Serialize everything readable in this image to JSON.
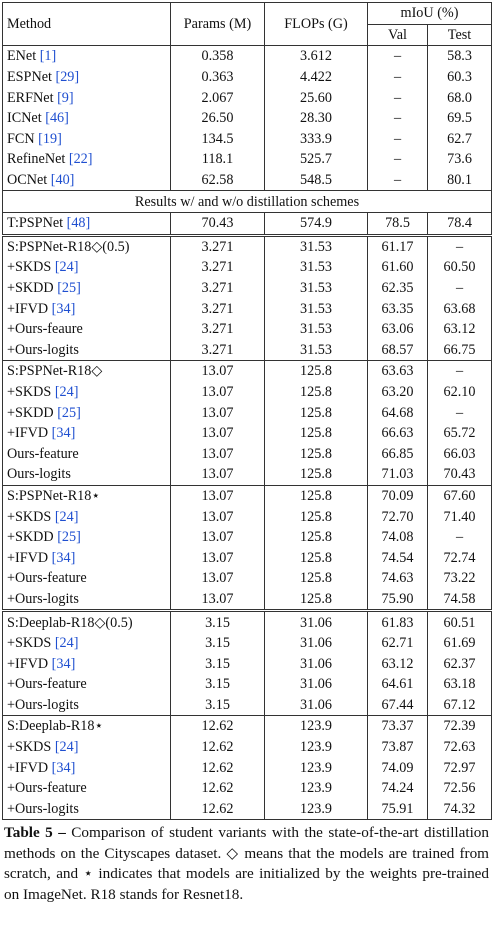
{
  "header": {
    "method": "Method",
    "params": "Params (M)",
    "flops": "FLOPs (G)",
    "miou": "mIoU (%)",
    "val": "Val",
    "test": "Test"
  },
  "groups": [
    {
      "rows": [
        {
          "method": "ENet",
          "ref": "[1]",
          "params": "0.358",
          "flops": "3.612",
          "val": "–",
          "test": "58.3"
        },
        {
          "method": "ESPNet",
          "ref": "[29]",
          "params": "0.363",
          "flops": "4.422",
          "val": "–",
          "test": "60.3"
        },
        {
          "method": "ERFNet",
          "ref": "[9]",
          "params": "2.067",
          "flops": "25.60",
          "val": "–",
          "test": "68.0"
        },
        {
          "method": "ICNet",
          "ref": "[46]",
          "params": "26.50",
          "flops": "28.30",
          "val": "–",
          "test": "69.5"
        },
        {
          "method": "FCN",
          "ref": "[19]",
          "params": "134.5",
          "flops": "333.9",
          "val": "–",
          "test": "62.7"
        },
        {
          "method": "RefineNet",
          "ref": "[22]",
          "params": "118.1",
          "flops": "525.7",
          "val": "–",
          "test": "73.6"
        },
        {
          "method": "OCNet",
          "ref": "[40]",
          "params": "62.58",
          "flops": "548.5",
          "val": "–",
          "test": "80.1"
        }
      ]
    },
    {
      "rows": [
        {
          "method": "T:PSPNet",
          "ref": "[48]",
          "params": "70.43",
          "flops": "574.9",
          "val": "78.5",
          "test": "78.4"
        }
      ]
    },
    {
      "rows": [
        {
          "method": "S:PSPNet-R18◇(0.5)",
          "params": "3.271",
          "flops": "31.53",
          "val": "61.17",
          "test": "–"
        },
        {
          "method": "+SKDS",
          "ref": "[24]",
          "params": "3.271",
          "flops": "31.53",
          "val": "61.60",
          "test": "60.50"
        },
        {
          "method": "+SKDD",
          "ref": "[25]",
          "params": "3.271",
          "flops": "31.53",
          "val": "62.35",
          "test": "–"
        },
        {
          "method": "+IFVD",
          "ref": "[34]",
          "params": "3.271",
          "flops": "31.53",
          "val": "63.35",
          "test": "63.68"
        },
        {
          "method": "+Ours-feaure",
          "params": "3.271",
          "flops": "31.53",
          "val": "63.06",
          "test": "63.12"
        },
        {
          "method": "+Ours-logits",
          "params": "3.271",
          "flops": "31.53",
          "val": "68.57",
          "test": "66.75"
        }
      ]
    },
    {
      "rows": [
        {
          "method": "S:PSPNet-R18◇",
          "params": "13.07",
          "flops": "125.8",
          "val": "63.63",
          "test": "–"
        },
        {
          "method": "+SKDS",
          "ref": "[24]",
          "params": "13.07",
          "flops": "125.8",
          "val": "63.20",
          "test": "62.10"
        },
        {
          "method": "+SKDD",
          "ref": "[25]",
          "params": "13.07",
          "flops": "125.8",
          "val": "64.68",
          "test": "–"
        },
        {
          "method": "+IFVD",
          "ref": "[34]",
          "params": "13.07",
          "flops": "125.8",
          "val": "66.63",
          "test": "65.72"
        },
        {
          "method": "Ours-feature",
          "params": "13.07",
          "flops": "125.8",
          "val": "66.85",
          "test": "66.03"
        },
        {
          "method": "Ours-logits",
          "params": "13.07",
          "flops": "125.8",
          "val": "71.03",
          "test": "70.43"
        }
      ]
    },
    {
      "rows": [
        {
          "method": "S:PSPNet-R18⋆",
          "params": "13.07",
          "flops": "125.8",
          "val": "70.09",
          "test": "67.60"
        },
        {
          "method": "+SKDS",
          "ref": "[24]",
          "params": "13.07",
          "flops": "125.8",
          "val": "72.70",
          "test": "71.40"
        },
        {
          "method": "+SKDD",
          "ref": "[25]",
          "params": "13.07",
          "flops": "125.8",
          "val": "74.08",
          "test": "–"
        },
        {
          "method": "+IFVD",
          "ref": "[34]",
          "params": "13.07",
          "flops": "125.8",
          "val": "74.54",
          "test": "72.74"
        },
        {
          "method": "+Ours-feature",
          "params": "13.07",
          "flops": "125.8",
          "val": "74.63",
          "test": "73.22"
        },
        {
          "method": "+Ours-logits",
          "params": "13.07",
          "flops": "125.8",
          "val": "75.90",
          "test": "74.58"
        }
      ]
    },
    {
      "rows": [
        {
          "method": "S:Deeplab-R18◇(0.5)",
          "params": "3.15",
          "flops": "31.06",
          "val": "61.83",
          "test": "60.51"
        },
        {
          "method": "+SKDS",
          "ref": "[24]",
          "params": "3.15",
          "flops": "31.06",
          "val": "62.71",
          "test": "61.69"
        },
        {
          "method": "+IFVD",
          "ref": "[34]",
          "params": "3.15",
          "flops": "31.06",
          "val": "63.12",
          "test": "62.37"
        },
        {
          "method": "+Ours-feature",
          "params": "3.15",
          "flops": "31.06",
          "val": "64.61",
          "test": "63.18"
        },
        {
          "method": "+Ours-logits",
          "params": "3.15",
          "flops": "31.06",
          "val": "67.44",
          "test": "67.12"
        }
      ]
    },
    {
      "rows": [
        {
          "method": "S:Deeplab-R18⋆",
          "params": "12.62",
          "flops": "123.9",
          "val": "73.37",
          "test": "72.39"
        },
        {
          "method": "+SKDS",
          "ref": "[24]",
          "params": "12.62",
          "flops": "123.9",
          "val": "73.87",
          "test": "72.63"
        },
        {
          "method": "+IFVD",
          "ref": "[34]",
          "params": "12.62",
          "flops": "123.9",
          "val": "74.09",
          "test": "72.97"
        },
        {
          "method": "+Ours-feature",
          "params": "12.62",
          "flops": "123.9",
          "val": "74.24",
          "test": "72.56"
        },
        {
          "method": "+Ours-logits",
          "params": "12.62",
          "flops": "123.9",
          "val": "75.91",
          "test": "74.32"
        }
      ]
    }
  ],
  "note": "Results w/ and w/o distillation schemes",
  "caption": {
    "label": "Table 5 –",
    "text": "Comparison of student variants with the state-of-the-art distillation methods on the Cityscapes dataset. ◇ means that the models are trained from scratch, and ⋆ indicates that models are initialized by the weights pre-trained on ImageNet. R18 stands for Resnet18."
  }
}
